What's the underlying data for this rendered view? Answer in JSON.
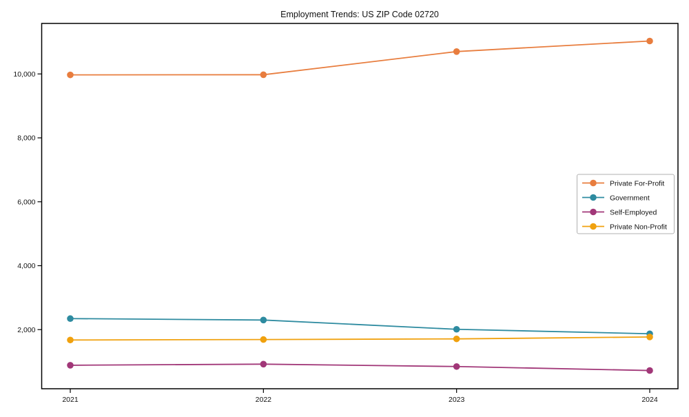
{
  "page": {
    "background_color": "#ffffff",
    "axis_color": "#000000",
    "legend_border_color": "#b0b0b0"
  },
  "chart_data": {
    "type": "line",
    "title": "Employment Trends: US ZIP Code 02720",
    "xlabel": "",
    "ylabel": "",
    "categories": [
      "2021",
      "2022",
      "2023",
      "2024"
    ],
    "series": [
      {
        "name": "Private For-Profit",
        "color": "#e87d3e",
        "values": [
          9970,
          9975,
          10700,
          11030
        ]
      },
      {
        "name": "Government",
        "color": "#2e8ba0",
        "values": [
          2345,
          2300,
          2010,
          1870
        ]
      },
      {
        "name": "Self-Employed",
        "color": "#a13778",
        "values": [
          885,
          920,
          845,
          720
        ]
      },
      {
        "name": "Private Non-Profit",
        "color": "#f0a10e",
        "values": [
          1675,
          1690,
          1710,
          1770
        ]
      }
    ],
    "ylim": [
      150,
      11580
    ],
    "yticks": [
      2000,
      4000,
      6000,
      8000,
      10000
    ],
    "grid": false,
    "legend_position": "center-right",
    "marker": "circle"
  }
}
